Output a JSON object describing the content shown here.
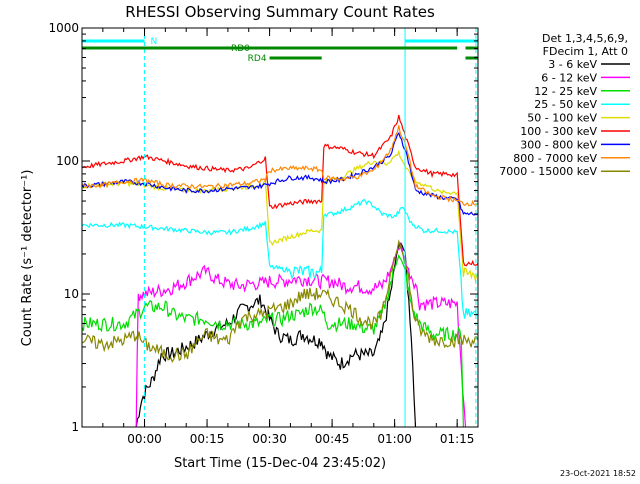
{
  "chart_data": {
    "type": "line",
    "title": "RHESSI Observing Summary Count Rates",
    "xlabel": "Start Time (15-Dec-04 23:45:02)",
    "ylabel": "Count Rate (s⁻¹ detector⁻¹)",
    "footer": "23-Oct-2021 18:52",
    "x_unit": "minutes after 23:45:02",
    "xlim": [
      0,
      95
    ],
    "ylim": [
      1,
      1000
    ],
    "y_scale": "log",
    "x_ticks": [
      {
        "x": 15,
        "label": "00:00"
      },
      {
        "x": 30,
        "label": "00:15"
      },
      {
        "x": 45,
        "label": "00:30"
      },
      {
        "x": 60,
        "label": "00:45"
      },
      {
        "x": 75,
        "label": "01:00"
      },
      {
        "x": 90,
        "label": "01:15"
      }
    ],
    "y_ticks": [
      {
        "y": 1,
        "label": "1"
      },
      {
        "y": 10,
        "label": "10"
      },
      {
        "y": 100,
        "label": "100"
      },
      {
        "y": 1000,
        "label": "1000"
      }
    ],
    "legend": {
      "position": "right",
      "header": [
        "Det 1,3,4,5,6,9,",
        "FDecim 1, Att 0"
      ],
      "entries": [
        {
          "label": "3 - 6 keV",
          "color": "#000000"
        },
        {
          "label": "6 - 12 keV",
          "color": "#ff00ff"
        },
        {
          "label": "12 - 25 keV",
          "color": "#00dd00"
        },
        {
          "label": "25 - 50 keV",
          "color": "#00ffff"
        },
        {
          "label": "50 - 100 keV",
          "color": "#dddd00"
        },
        {
          "label": "100 - 300 keV",
          "color": "#ff0000"
        },
        {
          "label": "300 - 800 keV",
          "color": "#0000ff"
        },
        {
          "label": "800 - 7000 keV",
          "color": "#ff8800"
        },
        {
          "label": "7000 - 15000 keV",
          "color": "#888800"
        }
      ]
    },
    "flags": [
      {
        "label": "N",
        "color": "#00ffff",
        "segments": [
          [
            0,
            15
          ],
          [
            77.5,
            95
          ]
        ]
      },
      {
        "label": "RD0",
        "color": "#008800",
        "segments": [
          [
            0,
            90
          ],
          [
            92,
            95
          ]
        ]
      },
      {
        "label": "RD4",
        "color": "#008800",
        "segments": [
          [
            45,
            57.5
          ],
          [
            92,
            95
          ]
        ]
      }
    ],
    "vertical_markers": [
      {
        "x": 15,
        "color": "#00ffff",
        "style": "dashed"
      },
      {
        "x": 77.5,
        "color": "#00ffff",
        "style": "solid"
      },
      {
        "x": 94.5,
        "color": "#00ffff",
        "style": "dashed"
      }
    ],
    "series": [
      {
        "name": "3 - 6 keV",
        "color": "#000000",
        "points": [
          [
            13,
            1
          ],
          [
            14,
            1.5
          ],
          [
            15,
            1.8
          ],
          [
            17,
            2.3
          ],
          [
            19,
            3.5
          ],
          [
            22,
            3.6
          ],
          [
            25,
            4
          ],
          [
            28,
            4.5
          ],
          [
            30,
            5
          ],
          [
            32,
            5.5
          ],
          [
            35,
            6
          ],
          [
            38,
            7.5
          ],
          [
            41,
            8.5
          ],
          [
            43,
            9
          ],
          [
            45,
            6.5
          ],
          [
            47,
            5
          ],
          [
            50,
            4.5
          ],
          [
            53,
            5
          ],
          [
            56,
            4.5
          ],
          [
            57.5,
            4.5
          ],
          [
            59,
            3.5
          ],
          [
            62,
            3
          ],
          [
            65,
            3.5
          ],
          [
            68,
            3.5
          ],
          [
            70,
            3.5
          ],
          [
            72,
            5
          ],
          [
            74,
            10
          ],
          [
            75.5,
            20
          ],
          [
            76.5,
            25
          ],
          [
            77.5,
            20
          ],
          [
            79,
            5
          ],
          [
            80,
            1
          ]
        ]
      },
      {
        "name": "6 - 12 keV",
        "color": "#ff00ff",
        "points": [
          [
            13,
            1
          ],
          [
            13.5,
            10
          ],
          [
            15,
            10
          ],
          [
            18,
            10.5
          ],
          [
            21,
            11
          ],
          [
            24,
            12
          ],
          [
            27,
            13.5
          ],
          [
            30,
            15
          ],
          [
            32,
            13
          ],
          [
            35,
            12
          ],
          [
            38,
            11.5
          ],
          [
            41,
            12
          ],
          [
            43,
            12
          ],
          [
            45,
            12.5
          ],
          [
            48,
            12.5
          ],
          [
            51,
            13
          ],
          [
            54,
            13
          ],
          [
            57.5,
            12.5
          ],
          [
            60,
            12.5
          ],
          [
            63,
            11.5
          ],
          [
            66,
            11.5
          ],
          [
            69,
            11
          ],
          [
            72,
            11.5
          ],
          [
            74,
            15
          ],
          [
            75.5,
            21
          ],
          [
            76.5,
            23
          ],
          [
            78,
            16
          ],
          [
            80,
            12
          ],
          [
            81,
            8.5
          ],
          [
            90,
            8.5
          ],
          [
            92,
            1
          ]
        ]
      },
      {
        "name": "12 - 25 keV",
        "color": "#00dd00",
        "points": [
          [
            0,
            6
          ],
          [
            5,
            6
          ],
          [
            10,
            6
          ],
          [
            13,
            7
          ],
          [
            15,
            8
          ],
          [
            18,
            8
          ],
          [
            20,
            8
          ],
          [
            22,
            7
          ],
          [
            25,
            6.5
          ],
          [
            28,
            6.5
          ],
          [
            30,
            6.5
          ],
          [
            33,
            6
          ],
          [
            36,
            6
          ],
          [
            40,
            6
          ],
          [
            43,
            6
          ],
          [
            45,
            6.5
          ],
          [
            48,
            6.5
          ],
          [
            50,
            7
          ],
          [
            52,
            7
          ],
          [
            55,
            8
          ],
          [
            57.5,
            7.5
          ],
          [
            59,
            6
          ],
          [
            62,
            6
          ],
          [
            65,
            6
          ],
          [
            68,
            5.5
          ],
          [
            70,
            5.5
          ],
          [
            72,
            7
          ],
          [
            74,
            12
          ],
          [
            76,
            20
          ],
          [
            77.5,
            15
          ],
          [
            79,
            8
          ],
          [
            81,
            6
          ],
          [
            84,
            5
          ],
          [
            88,
            5
          ],
          [
            91,
            5
          ],
          [
            91.5,
            1
          ]
        ]
      },
      {
        "name": "25 - 50 keV",
        "color": "#00ffff",
        "points": [
          [
            0,
            33
          ],
          [
            10,
            33
          ],
          [
            15,
            32
          ],
          [
            20,
            31
          ],
          [
            25,
            30
          ],
          [
            30,
            29
          ],
          [
            35,
            29
          ],
          [
            40,
            31
          ],
          [
            44,
            34
          ],
          [
            45,
            16
          ],
          [
            50,
            15
          ],
          [
            55,
            14.5
          ],
          [
            57.5,
            14.5
          ],
          [
            58,
            40
          ],
          [
            60,
            40
          ],
          [
            63,
            43
          ],
          [
            66,
            47
          ],
          [
            68,
            50
          ],
          [
            70,
            46
          ],
          [
            72,
            40
          ],
          [
            75,
            38
          ],
          [
            77,
            45
          ],
          [
            79,
            34
          ],
          [
            82,
            30
          ],
          [
            86,
            30
          ],
          [
            90,
            29
          ],
          [
            91.5,
            7
          ],
          [
            95,
            7
          ]
        ]
      },
      {
        "name": "50 - 100 keV",
        "color": "#dddd00",
        "points": [
          [
            0,
            65
          ],
          [
            10,
            68
          ],
          [
            15,
            66
          ],
          [
            20,
            62
          ],
          [
            25,
            60
          ],
          [
            30,
            60
          ],
          [
            35,
            62
          ],
          [
            40,
            64
          ],
          [
            44,
            68
          ],
          [
            45,
            24
          ],
          [
            50,
            27
          ],
          [
            55,
            30
          ],
          [
            57.5,
            30
          ],
          [
            58,
            70
          ],
          [
            62,
            75
          ],
          [
            66,
            88
          ],
          [
            70,
            100
          ],
          [
            73,
            95
          ],
          [
            76,
            115
          ],
          [
            78,
            85
          ],
          [
            80,
            70
          ],
          [
            83,
            65
          ],
          [
            86,
            58
          ],
          [
            90,
            58
          ],
          [
            91.5,
            14
          ],
          [
            95,
            14
          ]
        ]
      },
      {
        "name": "100 - 300 keV",
        "color": "#ff0000",
        "points": [
          [
            0,
            90
          ],
          [
            5,
            95
          ],
          [
            10,
            100
          ],
          [
            15,
            108
          ],
          [
            20,
            100
          ],
          [
            25,
            92
          ],
          [
            30,
            88
          ],
          [
            35,
            85
          ],
          [
            40,
            88
          ],
          [
            44,
            105
          ],
          [
            45,
            45
          ],
          [
            50,
            48
          ],
          [
            55,
            50
          ],
          [
            57.5,
            50
          ],
          [
            58,
            130
          ],
          [
            62,
            125
          ],
          [
            66,
            115
          ],
          [
            70,
            110
          ],
          [
            74,
            150
          ],
          [
            76,
            215
          ],
          [
            78,
            140
          ],
          [
            80,
            90
          ],
          [
            84,
            80
          ],
          [
            88,
            80
          ],
          [
            90,
            78
          ],
          [
            91.5,
            17
          ],
          [
            95,
            17
          ]
        ]
      },
      {
        "name": "300 - 800 keV",
        "color": "#0000ff",
        "points": [
          [
            0,
            65
          ],
          [
            5,
            67
          ],
          [
            10,
            70
          ],
          [
            15,
            68
          ],
          [
            20,
            63
          ],
          [
            25,
            60
          ],
          [
            30,
            60
          ],
          [
            35,
            62
          ],
          [
            40,
            63
          ],
          [
            44,
            66
          ],
          [
            45,
            68
          ],
          [
            50,
            75
          ],
          [
            55,
            75
          ],
          [
            57.5,
            72
          ],
          [
            58,
            70
          ],
          [
            62,
            72
          ],
          [
            66,
            80
          ],
          [
            70,
            90
          ],
          [
            74,
            110
          ],
          [
            76,
            165
          ],
          [
            78,
            110
          ],
          [
            80,
            60
          ],
          [
            84,
            55
          ],
          [
            88,
            52
          ],
          [
            90,
            52
          ],
          [
            91.5,
            40
          ],
          [
            95,
            40
          ]
        ]
      },
      {
        "name": "800 - 7000 keV",
        "color": "#ff8800",
        "points": [
          [
            0,
            65
          ],
          [
            5,
            66
          ],
          [
            10,
            70
          ],
          [
            15,
            72
          ],
          [
            20,
            66
          ],
          [
            25,
            65
          ],
          [
            30,
            64
          ],
          [
            35,
            66
          ],
          [
            40,
            68
          ],
          [
            44,
            73
          ],
          [
            45,
            85
          ],
          [
            50,
            88
          ],
          [
            55,
            88
          ],
          [
            57.5,
            85
          ],
          [
            58,
            75
          ],
          [
            62,
            73
          ],
          [
            66,
            76
          ],
          [
            70,
            85
          ],
          [
            74,
            120
          ],
          [
            76,
            180
          ],
          [
            78,
            120
          ],
          [
            80,
            65
          ],
          [
            84,
            55
          ],
          [
            88,
            52
          ],
          [
            90,
            50
          ],
          [
            91.5,
            48
          ],
          [
            95,
            48
          ]
        ]
      },
      {
        "name": "7000 - 15000 keV",
        "color": "#888800",
        "points": [
          [
            0,
            4.5
          ],
          [
            5,
            4.2
          ],
          [
            10,
            4.5
          ],
          [
            13,
            5
          ],
          [
            15,
            4.2
          ],
          [
            18,
            3.8
          ],
          [
            20,
            3.5
          ],
          [
            22,
            3.5
          ],
          [
            25,
            3.5
          ],
          [
            28,
            4.5
          ],
          [
            30,
            5
          ],
          [
            33,
            4.5
          ],
          [
            35,
            4.5
          ],
          [
            38,
            6.5
          ],
          [
            41,
            7
          ],
          [
            43,
            7
          ],
          [
            45,
            7.5
          ],
          [
            48,
            8
          ],
          [
            50,
            8.5
          ],
          [
            53,
            10
          ],
          [
            55,
            10
          ],
          [
            57.5,
            10
          ],
          [
            59,
            9.5
          ],
          [
            62,
            8.5
          ],
          [
            65,
            7.5
          ],
          [
            67,
            6.5
          ],
          [
            70,
            6
          ],
          [
            72,
            7
          ],
          [
            74,
            14
          ],
          [
            76,
            25
          ],
          [
            78,
            15
          ],
          [
            80,
            6
          ],
          [
            82,
            5
          ],
          [
            85,
            4.5
          ],
          [
            88,
            4.5
          ],
          [
            91,
            4.5
          ],
          [
            95,
            4.5
          ]
        ]
      }
    ]
  }
}
